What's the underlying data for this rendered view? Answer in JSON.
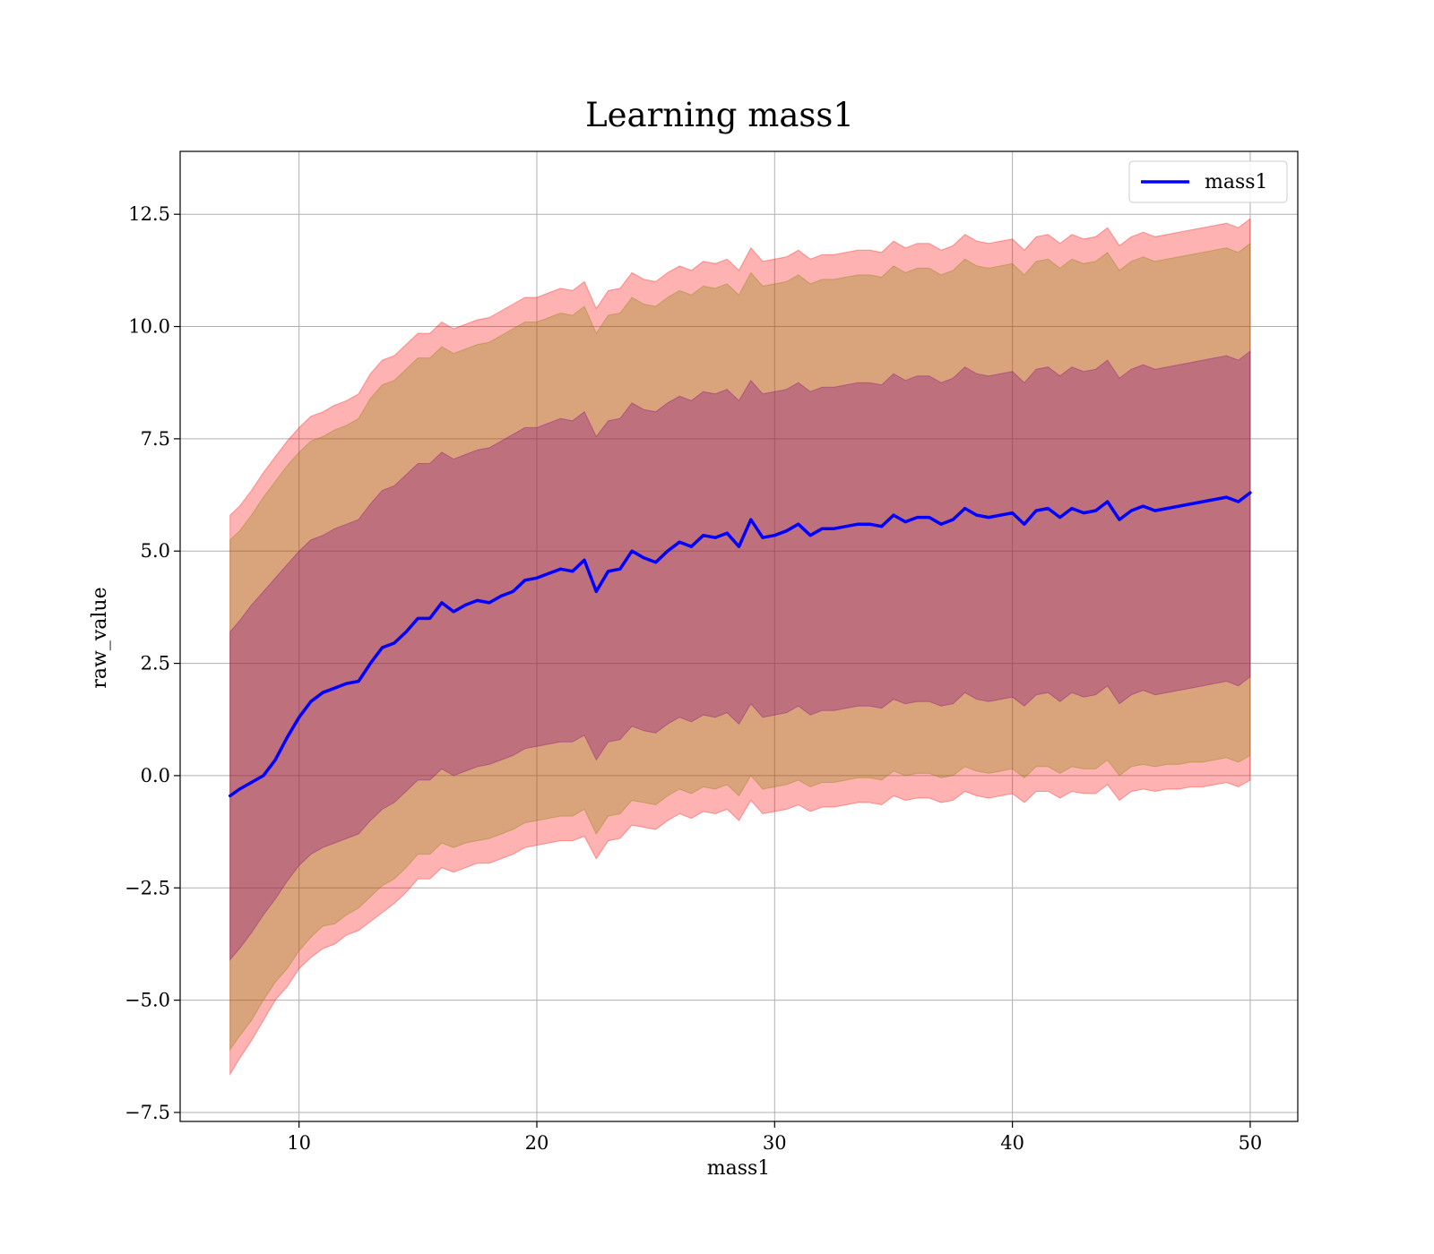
{
  "chart_data": {
    "type": "line",
    "title": "Learning mass1",
    "xlabel": "mass1",
    "ylabel": "raw_value",
    "xlim": [
      5,
      52
    ],
    "ylim": [
      -7.7,
      13.9
    ],
    "xticks": [
      10,
      20,
      30,
      40,
      50
    ],
    "xtick_labels": [
      "10",
      "20",
      "30",
      "40",
      "50"
    ],
    "yticks": [
      -7.5,
      -5.0,
      -2.5,
      0.0,
      2.5,
      5.0,
      7.5,
      10.0,
      12.5
    ],
    "ytick_labels": [
      "−7.5",
      "−5.0",
      "−2.5",
      "0.0",
      "2.5",
      "5.0",
      "7.5",
      "10.0",
      "12.5"
    ],
    "grid": true,
    "legend_position": "top-right",
    "series": [
      {
        "name": "mass1",
        "color": "#0000ff",
        "x": [
          7.1,
          7.5,
          8.0,
          8.5,
          9.0,
          9.5,
          10.0,
          10.5,
          11.0,
          11.5,
          12.0,
          12.5,
          13.0,
          13.5,
          14.0,
          14.5,
          15.0,
          15.5,
          16.0,
          16.5,
          17.0,
          17.5,
          18.0,
          18.5,
          19.0,
          19.5,
          20.0,
          20.5,
          21.0,
          21.5,
          22.0,
          22.5,
          23.0,
          23.5,
          24.0,
          24.5,
          25.0,
          25.5,
          26.0,
          26.5,
          27.0,
          27.5,
          28.0,
          28.5,
          29.0,
          29.5,
          30.0,
          30.5,
          31.0,
          31.5,
          32.0,
          32.5,
          33.0,
          33.5,
          34.0,
          34.5,
          35.0,
          35.5,
          36.0,
          36.5,
          37.0,
          37.5,
          38.0,
          38.5,
          39.0,
          39.5,
          40.0,
          40.5,
          41.0,
          41.5,
          42.0,
          42.5,
          43.0,
          43.5,
          44.0,
          44.5,
          45.0,
          45.5,
          46.0,
          46.5,
          47.0,
          47.5,
          48.0,
          48.5,
          49.0,
          49.5,
          50.0
        ],
        "values": [
          -0.45,
          -0.3,
          -0.15,
          0.0,
          0.35,
          0.85,
          1.3,
          1.65,
          1.85,
          1.95,
          2.05,
          2.1,
          2.5,
          2.85,
          2.95,
          3.2,
          3.5,
          3.5,
          3.85,
          3.65,
          3.8,
          3.9,
          3.85,
          4.0,
          4.1,
          4.35,
          4.4,
          4.5,
          4.6,
          4.55,
          4.8,
          4.1,
          4.55,
          4.6,
          5.0,
          4.85,
          4.75,
          5.0,
          5.2,
          5.1,
          5.35,
          5.3,
          5.4,
          5.1,
          5.7,
          5.3,
          5.35,
          5.45,
          5.6,
          5.35,
          5.5,
          5.5,
          5.55,
          5.6,
          5.6,
          5.55,
          5.8,
          5.65,
          5.75,
          5.75,
          5.6,
          5.7,
          5.95,
          5.8,
          5.75,
          5.8,
          5.85,
          5.6,
          5.9,
          5.95,
          5.75,
          5.95,
          5.85,
          5.9,
          6.1,
          5.7,
          5.9,
          6.0,
          5.9,
          5.95,
          6.0,
          6.05,
          6.1,
          6.15,
          6.2,
          6.1,
          6.3
        ]
      }
    ],
    "bands": [
      {
        "color": "#ff0000",
        "opacity": 0.3,
        "lower": [
          -6.65,
          -6.3,
          -5.9,
          -5.45,
          -5.0,
          -4.7,
          -4.3,
          -4.05,
          -3.85,
          -3.75,
          -3.55,
          -3.45,
          -3.25,
          -3.05,
          -2.85,
          -2.6,
          -2.3,
          -2.3,
          -2.05,
          -2.15,
          -2.05,
          -1.95,
          -1.95,
          -1.85,
          -1.75,
          -1.6,
          -1.55,
          -1.5,
          -1.45,
          -1.45,
          -1.35,
          -1.85,
          -1.45,
          -1.4,
          -1.1,
          -1.15,
          -1.2,
          -1.0,
          -0.85,
          -0.95,
          -0.8,
          -0.85,
          -0.75,
          -1.0,
          -0.55,
          -0.85,
          -0.8,
          -0.75,
          -0.65,
          -0.8,
          -0.7,
          -0.7,
          -0.65,
          -0.6,
          -0.6,
          -0.65,
          -0.45,
          -0.55,
          -0.5,
          -0.5,
          -0.6,
          -0.55,
          -0.35,
          -0.45,
          -0.5,
          -0.45,
          -0.4,
          -0.6,
          -0.35,
          -0.35,
          -0.5,
          -0.35,
          -0.4,
          -0.4,
          -0.2,
          -0.55,
          -0.35,
          -0.3,
          -0.35,
          -0.3,
          -0.3,
          -0.25,
          -0.25,
          -0.2,
          -0.15,
          -0.25,
          -0.1
        ],
        "upper": [
          5.8,
          6.0,
          6.35,
          6.75,
          7.1,
          7.45,
          7.75,
          8.0,
          8.1,
          8.25,
          8.35,
          8.5,
          8.95,
          9.25,
          9.35,
          9.6,
          9.85,
          9.85,
          10.1,
          9.95,
          10.05,
          10.15,
          10.2,
          10.35,
          10.5,
          10.65,
          10.65,
          10.75,
          10.85,
          10.8,
          11.0,
          10.4,
          10.8,
          10.85,
          11.2,
          11.05,
          11.0,
          11.2,
          11.35,
          11.25,
          11.45,
          11.4,
          11.5,
          11.25,
          11.75,
          11.45,
          11.5,
          11.55,
          11.7,
          11.5,
          11.6,
          11.6,
          11.65,
          11.7,
          11.7,
          11.65,
          11.9,
          11.75,
          11.85,
          11.85,
          11.7,
          11.8,
          12.05,
          11.9,
          11.85,
          11.9,
          11.95,
          11.7,
          12.0,
          12.05,
          11.85,
          12.05,
          11.95,
          12.0,
          12.2,
          11.8,
          12.0,
          12.1,
          12.0,
          12.05,
          12.1,
          12.15,
          12.2,
          12.25,
          12.3,
          12.2,
          12.4
        ]
      },
      {
        "color": "#808000",
        "opacity": 0.3,
        "lower": [
          -6.1,
          -5.8,
          -5.45,
          -5.0,
          -4.6,
          -4.3,
          -3.9,
          -3.6,
          -3.35,
          -3.3,
          -3.1,
          -2.95,
          -2.7,
          -2.45,
          -2.3,
          -2.05,
          -1.75,
          -1.75,
          -1.5,
          -1.6,
          -1.5,
          -1.45,
          -1.4,
          -1.3,
          -1.2,
          -1.05,
          -1.0,
          -0.95,
          -0.9,
          -0.9,
          -0.75,
          -1.3,
          -0.9,
          -0.85,
          -0.55,
          -0.6,
          -0.65,
          -0.45,
          -0.3,
          -0.4,
          -0.25,
          -0.3,
          -0.2,
          -0.45,
          0.0,
          -0.3,
          -0.25,
          -0.2,
          -0.1,
          -0.25,
          -0.15,
          -0.15,
          -0.1,
          -0.05,
          -0.05,
          -0.1,
          0.1,
          0.0,
          0.05,
          0.05,
          -0.05,
          0.0,
          0.2,
          0.1,
          0.05,
          0.1,
          0.15,
          -0.05,
          0.2,
          0.2,
          0.05,
          0.2,
          0.15,
          0.15,
          0.35,
          0.0,
          0.2,
          0.25,
          0.2,
          0.25,
          0.25,
          0.3,
          0.3,
          0.35,
          0.4,
          0.3,
          0.45
        ],
        "upper": [
          5.25,
          5.45,
          5.8,
          6.2,
          6.55,
          6.9,
          7.2,
          7.45,
          7.55,
          7.7,
          7.8,
          7.95,
          8.4,
          8.7,
          8.8,
          9.05,
          9.3,
          9.3,
          9.55,
          9.4,
          9.5,
          9.6,
          9.65,
          9.8,
          9.95,
          10.1,
          10.1,
          10.2,
          10.3,
          10.25,
          10.45,
          9.85,
          10.25,
          10.3,
          10.65,
          10.5,
          10.45,
          10.65,
          10.8,
          10.7,
          10.9,
          10.85,
          10.95,
          10.7,
          11.2,
          10.9,
          10.95,
          11.0,
          11.15,
          10.95,
          11.05,
          11.05,
          11.1,
          11.15,
          11.15,
          11.1,
          11.35,
          11.2,
          11.3,
          11.3,
          11.15,
          11.25,
          11.5,
          11.35,
          11.3,
          11.35,
          11.4,
          11.15,
          11.45,
          11.5,
          11.3,
          11.5,
          11.4,
          11.45,
          11.65,
          11.25,
          11.45,
          11.55,
          11.45,
          11.5,
          11.55,
          11.6,
          11.65,
          11.7,
          11.75,
          11.65,
          11.85
        ]
      },
      {
        "color": "#800080",
        "opacity": 0.3,
        "lower": [
          -4.1,
          -3.85,
          -3.5,
          -3.1,
          -2.75,
          -2.35,
          -2.0,
          -1.75,
          -1.6,
          -1.5,
          -1.4,
          -1.3,
          -1.0,
          -0.75,
          -0.6,
          -0.35,
          -0.1,
          -0.1,
          0.15,
          0.0,
          0.1,
          0.2,
          0.25,
          0.35,
          0.45,
          0.6,
          0.65,
          0.7,
          0.75,
          0.75,
          0.9,
          0.35,
          0.75,
          0.8,
          1.1,
          1.0,
          0.95,
          1.15,
          1.3,
          1.2,
          1.35,
          1.3,
          1.4,
          1.15,
          1.6,
          1.3,
          1.35,
          1.4,
          1.55,
          1.35,
          1.45,
          1.45,
          1.5,
          1.55,
          1.55,
          1.5,
          1.7,
          1.6,
          1.65,
          1.65,
          1.55,
          1.6,
          1.85,
          1.7,
          1.65,
          1.7,
          1.75,
          1.55,
          1.8,
          1.85,
          1.65,
          1.85,
          1.75,
          1.8,
          2.0,
          1.6,
          1.8,
          1.9,
          1.8,
          1.85,
          1.9,
          1.95,
          2.0,
          2.05,
          2.1,
          2.0,
          2.2
        ],
        "upper": [
          3.2,
          3.45,
          3.8,
          4.1,
          4.4,
          4.7,
          5.0,
          5.25,
          5.35,
          5.5,
          5.6,
          5.7,
          6.05,
          6.35,
          6.45,
          6.7,
          6.95,
          6.95,
          7.2,
          7.05,
          7.15,
          7.25,
          7.3,
          7.45,
          7.6,
          7.75,
          7.75,
          7.85,
          7.95,
          7.9,
          8.1,
          7.55,
          7.9,
          7.95,
          8.3,
          8.15,
          8.1,
          8.3,
          8.45,
          8.35,
          8.55,
          8.5,
          8.6,
          8.35,
          8.8,
          8.5,
          8.55,
          8.6,
          8.75,
          8.55,
          8.65,
          8.65,
          8.7,
          8.75,
          8.75,
          8.7,
          8.95,
          8.8,
          8.9,
          8.9,
          8.75,
          8.85,
          9.1,
          8.95,
          8.9,
          8.95,
          9.0,
          8.75,
          9.05,
          9.1,
          8.9,
          9.1,
          9.0,
          9.05,
          9.25,
          8.85,
          9.05,
          9.15,
          9.05,
          9.1,
          9.15,
          9.2,
          9.25,
          9.3,
          9.35,
          9.25,
          9.45
        ]
      }
    ]
  }
}
